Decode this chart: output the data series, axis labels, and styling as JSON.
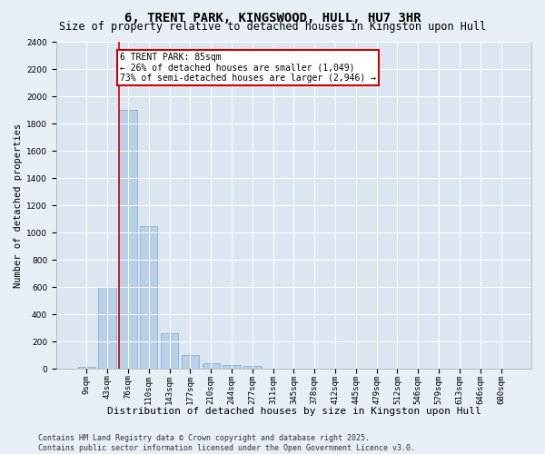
{
  "title": "6, TRENT PARK, KINGSWOOD, HULL, HU7 3HR",
  "subtitle": "Size of property relative to detached houses in Kingston upon Hull",
  "xlabel": "Distribution of detached houses by size in Kingston upon Hull",
  "ylabel": "Number of detached properties",
  "categories": [
    "9sqm",
    "43sqm",
    "76sqm",
    "110sqm",
    "143sqm",
    "177sqm",
    "210sqm",
    "244sqm",
    "277sqm",
    "311sqm",
    "345sqm",
    "378sqm",
    "412sqm",
    "445sqm",
    "479sqm",
    "512sqm",
    "546sqm",
    "579sqm",
    "613sqm",
    "646sqm",
    "680sqm"
  ],
  "values": [
    15,
    600,
    1900,
    1050,
    260,
    100,
    40,
    30,
    20,
    0,
    0,
    0,
    0,
    0,
    0,
    0,
    0,
    0,
    0,
    0,
    0
  ],
  "bar_color": "#b8d0e8",
  "bar_edge_color": "#7aa8cc",
  "vline_color": "#cc0000",
  "annotation_text": "6 TRENT PARK: 85sqm\n← 26% of detached houses are smaller (1,049)\n73% of semi-detached houses are larger (2,946) →",
  "annotation_box_color": "#ffffff",
  "annotation_box_edge": "#cc0000",
  "ylim": [
    0,
    2400
  ],
  "yticks": [
    0,
    200,
    400,
    600,
    800,
    1000,
    1200,
    1400,
    1600,
    1800,
    2000,
    2200,
    2400
  ],
  "bg_color": "#e8eef5",
  "plot_bg_color": "#dce6f0",
  "grid_color": "#ffffff",
  "footer": "Contains HM Land Registry data © Crown copyright and database right 2025.\nContains public sector information licensed under the Open Government Licence v3.0.",
  "title_fontsize": 10,
  "subtitle_fontsize": 8.5,
  "xlabel_fontsize": 8,
  "ylabel_fontsize": 7.5,
  "tick_fontsize": 6.5,
  "footer_fontsize": 6,
  "annot_fontsize": 7
}
